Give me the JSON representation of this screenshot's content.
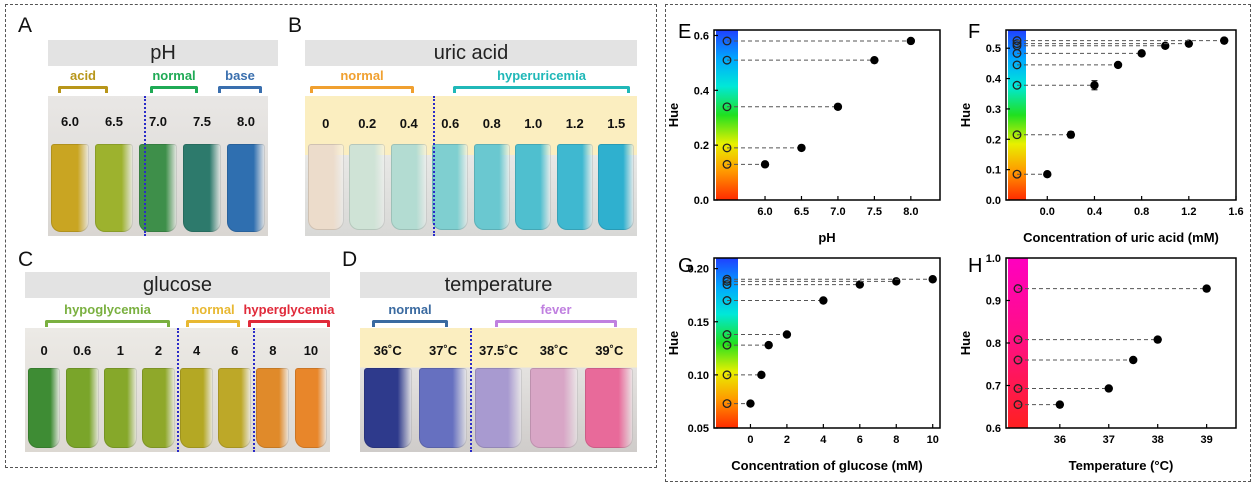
{
  "panels": {
    "A": {
      "letter": "A",
      "title": "pH",
      "groups": [
        {
          "label": "acid",
          "color": "#b8961a"
        },
        {
          "label": "normal",
          "color": "#1faa55"
        },
        {
          "label": "base",
          "color": "#3a6fae"
        }
      ],
      "vials": [
        "6.0",
        "6.5",
        "7.0",
        "7.5",
        "8.0"
      ],
      "vial_colors": [
        "#c9a522",
        "#9db22e",
        "#3e8f4a",
        "#2d7a6c",
        "#2f6fb0"
      ]
    },
    "B": {
      "letter": "B",
      "title": "uric acid",
      "groups": [
        {
          "label": "normal",
          "color": "#f0a030"
        },
        {
          "label": "hyperuricemia",
          "color": "#20b8b8"
        }
      ],
      "vials": [
        "0",
        "0.2",
        "0.4",
        "0.6",
        "0.8",
        "1.0",
        "1.2",
        "1.5"
      ],
      "vial_colors": [
        "#ecdccb",
        "#cfe3d6",
        "#b3dcd2",
        "#7fcfd0",
        "#6ac8d0",
        "#4fbfcf",
        "#3fb8d0",
        "#2fb0cf"
      ]
    },
    "C": {
      "letter": "C",
      "title": "glucose",
      "groups": [
        {
          "label": "hypoglycemia",
          "color": "#7ab040"
        },
        {
          "label": "normal",
          "color": "#e8b832"
        },
        {
          "label": "hyperglycemia",
          "color": "#e02a3a"
        }
      ],
      "vials": [
        "0",
        "0.6",
        "1",
        "2",
        "4",
        "6",
        "8",
        "10"
      ],
      "vial_colors": [
        "#3e8c34",
        "#7aa52a",
        "#86a82a",
        "#8fa82a",
        "#b4a824",
        "#bda828",
        "#e08a2a",
        "#e8862a"
      ]
    },
    "D": {
      "letter": "D",
      "title": "temperature",
      "groups": [
        {
          "label": "normal",
          "color": "#3a6aa0"
        },
        {
          "label": "fever",
          "color": "#c080e0"
        }
      ],
      "vials": [
        "36˚C",
        "37˚C",
        "37.5˚C",
        "38˚C",
        "39˚C"
      ],
      "vial_colors": [
        "#2e3a8c",
        "#6670c0",
        "#a89ad0",
        "#d8a6c6",
        "#e86a9a"
      ]
    }
  },
  "chart_data": [
    {
      "panel": "E",
      "type": "scatter",
      "xlabel": "pH",
      "ylabel": "Hue",
      "xlim": [
        5.3,
        8.4
      ],
      "ylim": [
        0.0,
        0.62
      ],
      "xticks": [
        "6.0",
        "6.5",
        "7.0",
        "7.5",
        "8.0"
      ],
      "xtick_values": [
        6.0,
        6.5,
        7.0,
        7.5,
        8.0
      ],
      "yticks": [
        "0.0",
        "0.2",
        "0.4",
        "0.6"
      ],
      "ytick_values": [
        0.0,
        0.2,
        0.4,
        0.6
      ],
      "x": [
        6.0,
        6.5,
        7.0,
        7.5,
        8.0
      ],
      "y": [
        0.13,
        0.19,
        0.34,
        0.51,
        0.58
      ],
      "hue_bar": [
        0.0,
        0.63
      ]
    },
    {
      "panel": "F",
      "type": "scatter",
      "xlabel": "Concentration of uric acid (mM)",
      "ylabel": "Hue",
      "xlim": [
        -0.35,
        1.6
      ],
      "ylim": [
        0.0,
        0.56
      ],
      "xticks": [
        "0.0",
        "0.4",
        "0.8",
        "1.2",
        "1.6"
      ],
      "xtick_values": [
        0.0,
        0.4,
        0.8,
        1.2,
        1.6
      ],
      "yticks": [
        "0.0",
        "0.1",
        "0.2",
        "0.3",
        "0.4",
        "0.5"
      ],
      "ytick_values": [
        0.0,
        0.1,
        0.2,
        0.3,
        0.4,
        0.5
      ],
      "x": [
        0.0,
        0.2,
        0.4,
        0.6,
        0.8,
        1.0,
        1.2,
        1.5
      ],
      "y": [
        0.085,
        0.215,
        0.378,
        0.445,
        0.483,
        0.508,
        0.515,
        0.525
      ],
      "error": [
        0.0,
        0.01,
        0.015,
        0.0,
        0.0,
        0.0,
        0.0,
        0.0
      ],
      "hue_bar": [
        0.0,
        0.56
      ]
    },
    {
      "panel": "G",
      "type": "scatter",
      "xlabel": "Concentration of glucose (mM)",
      "ylabel": "Hue",
      "xlim": [
        -2.0,
        10.4
      ],
      "ylim": [
        0.05,
        0.21
      ],
      "xticks": [
        "0",
        "2",
        "4",
        "6",
        "8",
        "10"
      ],
      "xtick_values": [
        0,
        2,
        4,
        6,
        8,
        10
      ],
      "yticks": [
        "0.05",
        "0.10",
        "0.15",
        "0.20"
      ],
      "ytick_values": [
        0.05,
        0.1,
        0.15,
        0.2
      ],
      "x": [
        0,
        0.6,
        1,
        2,
        4,
        6,
        8,
        10
      ],
      "y": [
        0.073,
        0.1,
        0.128,
        0.138,
        0.17,
        0.185,
        0.188,
        0.19
      ],
      "hue_bar": [
        0.05,
        0.21
      ]
    },
    {
      "panel": "H",
      "type": "scatter",
      "xlabel": "Temperature (°C)",
      "ylabel": "Hue",
      "xlim": [
        34.9,
        39.6
      ],
      "ylim": [
        0.6,
        1.0
      ],
      "xticks": [
        "36",
        "37",
        "38",
        "39"
      ],
      "xtick_values": [
        36,
        37,
        38,
        39
      ],
      "yticks": [
        "0.6",
        "0.7",
        "0.8",
        "0.9",
        "1.0"
      ],
      "ytick_values": [
        0.6,
        0.7,
        0.8,
        0.9,
        1.0
      ],
      "x": [
        36,
        37,
        37.5,
        38,
        39
      ],
      "y": [
        0.655,
        0.693,
        0.76,
        0.808,
        0.928
      ],
      "hue_bar": [
        0.6,
        1.0
      ]
    }
  ]
}
